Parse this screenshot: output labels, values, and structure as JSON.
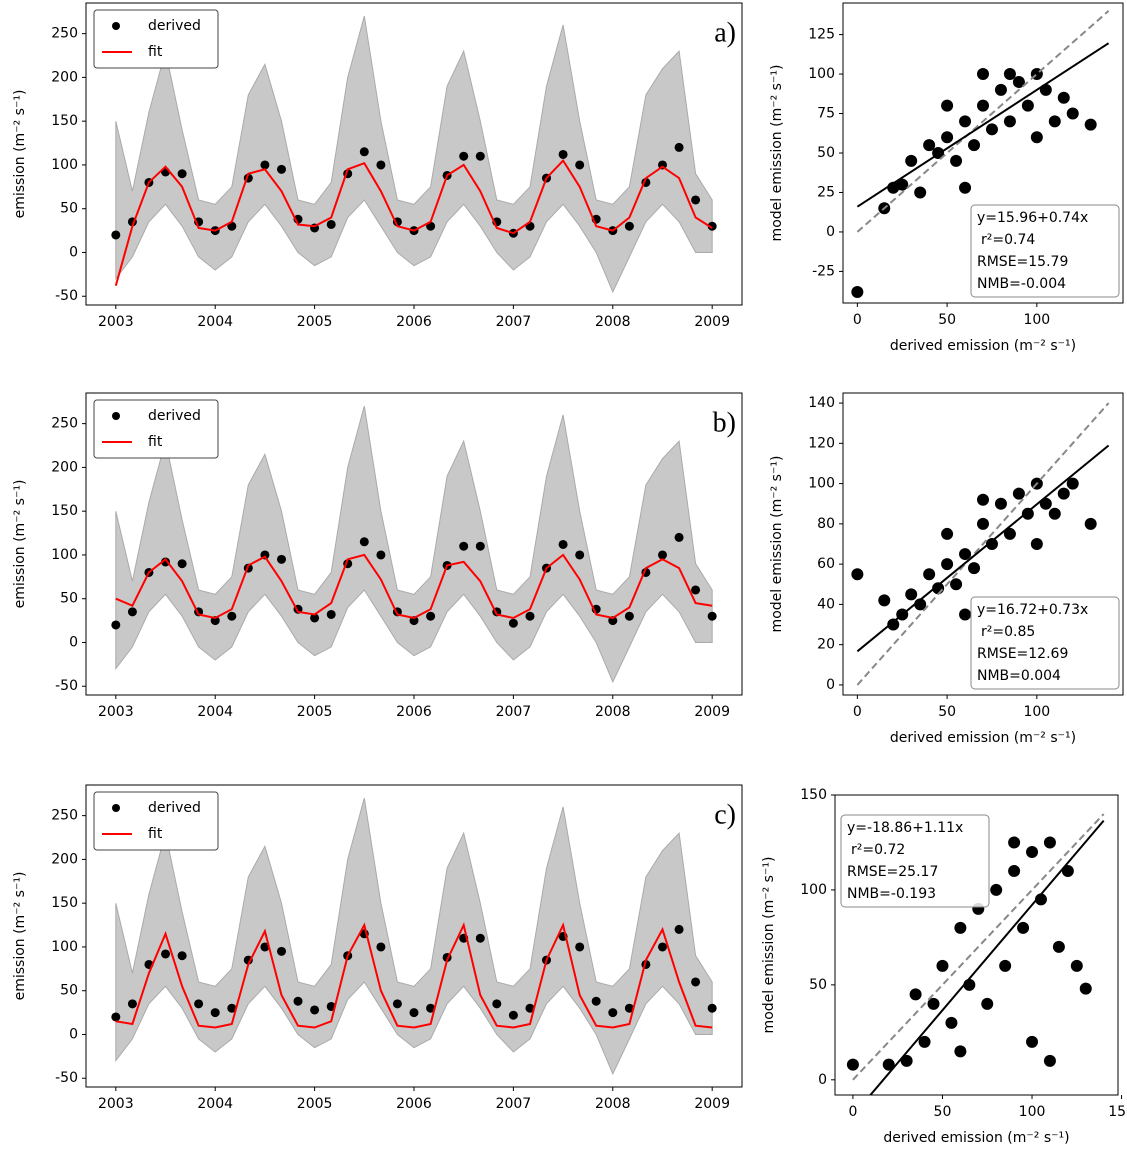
{
  "chart_data": [
    {
      "type": "line",
      "annotation": "a)",
      "y_label": "emission (m⁻² s⁻¹)",
      "legend": "upper left",
      "xlim": [
        2002.7,
        2009.3
      ],
      "xticks": [
        2003,
        2004,
        2005,
        2006,
        2007,
        2008,
        2009
      ],
      "ylim": [
        -60,
        285
      ],
      "yticks": [
        -50,
        0,
        50,
        100,
        150,
        200,
        250
      ],
      "x": [
        2003,
        2003.167,
        2003.333,
        2003.5,
        2003.667,
        2003.833,
        2004,
        2004.167,
        2004.333,
        2004.5,
        2004.667,
        2004.833,
        2005,
        2005.167,
        2005.333,
        2005.5,
        2005.667,
        2005.833,
        2006,
        2006.167,
        2006.333,
        2006.5,
        2006.667,
        2006.833,
        2007,
        2007.167,
        2007.333,
        2007.5,
        2007.667,
        2007.833,
        2008,
        2008.167,
        2008.333,
        2008.5,
        2008.667,
        2008.833,
        2009
      ],
      "band": {
        "color": "#c8c8c8",
        "upper": [
          150,
          70,
          160,
          230,
          140,
          60,
          55,
          75,
          180,
          215,
          150,
          60,
          55,
          80,
          200,
          270,
          150,
          60,
          55,
          75,
          190,
          230,
          150,
          60,
          55,
          75,
          190,
          260,
          150,
          60,
          55,
          75,
          180,
          210,
          230,
          90,
          60
        ],
        "lower": [
          -30,
          -5,
          35,
          55,
          30,
          -5,
          -20,
          -5,
          35,
          55,
          30,
          0,
          -15,
          -5,
          40,
          60,
          30,
          0,
          -15,
          -5,
          35,
          55,
          30,
          0,
          -20,
          -5,
          35,
          55,
          30,
          0,
          -45,
          -5,
          35,
          55,
          35,
          0,
          0
        ]
      },
      "series": [
        {
          "name": "derived",
          "color": "#000000",
          "marker": "dot",
          "values": [
            20,
            35,
            80,
            92,
            90,
            35,
            25,
            30,
            85,
            100,
            95,
            38,
            28,
            32,
            90,
            115,
            100,
            35,
            25,
            30,
            88,
            110,
            110,
            35,
            22,
            30,
            85,
            112,
            100,
            38,
            25,
            30,
            80,
            100,
            120,
            60,
            30
          ]
        },
        {
          "name": "fit",
          "color": "#ff0000",
          "marker": "line",
          "values": [
            -38,
            30,
            80,
            98,
            75,
            28,
            25,
            35,
            90,
            95,
            70,
            32,
            30,
            40,
            95,
            102,
            70,
            30,
            25,
            35,
            88,
            100,
            70,
            28,
            22,
            35,
            85,
            105,
            75,
            30,
            25,
            40,
            85,
            98,
            85,
            40,
            28
          ]
        }
      ]
    },
    {
      "type": "scatter",
      "x_label": "derived emission (m⁻² s⁻¹)",
      "y_label": "model emission (m⁻² s⁻¹)",
      "xlim": [
        -8,
        148
      ],
      "xticks": [
        0,
        50,
        100
      ],
      "ylim": [
        -45,
        145
      ],
      "yticks": [
        -25,
        0,
        25,
        50,
        75,
        100,
        125
      ],
      "color": "#000000",
      "x": [
        0,
        15,
        20,
        25,
        30,
        35,
        40,
        45,
        50,
        55,
        60,
        65,
        70,
        75,
        80,
        85,
        90,
        95,
        100,
        105,
        110,
        115,
        120,
        130,
        60,
        70,
        100,
        50,
        85
      ],
      "values": [
        -38,
        15,
        28,
        30,
        45,
        25,
        55,
        50,
        60,
        45,
        70,
        55,
        80,
        65,
        90,
        70,
        95,
        80,
        100,
        90,
        70,
        85,
        75,
        68,
        28,
        100,
        60,
        80,
        100
      ],
      "fit_line": {
        "x": [
          0,
          140
        ],
        "y": [
          15.96,
          119.56
        ]
      },
      "one_to_one": {
        "x": [
          0,
          140
        ],
        "y": [
          0,
          140
        ]
      },
      "stats": [
        "y=15.96+0.74x",
        "r²=0.74",
        "RMSE=15.79",
        "NMB=-0.004"
      ],
      "stats_corner": "lower right"
    },
    {
      "type": "line",
      "annotation": "b)",
      "y_label": "emission (m⁻² s⁻¹)",
      "legend": "upper left",
      "xlim": [
        2002.7,
        2009.3
      ],
      "xticks": [
        2003,
        2004,
        2005,
        2006,
        2007,
        2008,
        2009
      ],
      "ylim": [
        -60,
        285
      ],
      "yticks": [
        -50,
        0,
        50,
        100,
        150,
        200,
        250
      ],
      "x": [
        2003,
        2003.167,
        2003.333,
        2003.5,
        2003.667,
        2003.833,
        2004,
        2004.167,
        2004.333,
        2004.5,
        2004.667,
        2004.833,
        2005,
        2005.167,
        2005.333,
        2005.5,
        2005.667,
        2005.833,
        2006,
        2006.167,
        2006.333,
        2006.5,
        2006.667,
        2006.833,
        2007,
        2007.167,
        2007.333,
        2007.5,
        2007.667,
        2007.833,
        2008,
        2008.167,
        2008.333,
        2008.5,
        2008.667,
        2008.833,
        2009
      ],
      "band": {
        "color": "#c8c8c8",
        "upper": [
          150,
          70,
          160,
          230,
          140,
          60,
          55,
          75,
          180,
          215,
          150,
          60,
          55,
          80,
          200,
          270,
          150,
          60,
          55,
          75,
          190,
          230,
          150,
          60,
          55,
          75,
          190,
          260,
          150,
          60,
          55,
          75,
          180,
          210,
          230,
          90,
          60
        ],
        "lower": [
          -30,
          -5,
          35,
          55,
          30,
          -5,
          -20,
          -5,
          35,
          55,
          30,
          0,
          -15,
          -5,
          40,
          60,
          30,
          0,
          -15,
          -5,
          35,
          55,
          30,
          0,
          -20,
          -5,
          35,
          55,
          30,
          0,
          -45,
          -5,
          35,
          55,
          35,
          0,
          0
        ]
      },
      "series": [
        {
          "name": "derived",
          "color": "#000000",
          "marker": "dot",
          "values": [
            20,
            35,
            80,
            92,
            90,
            35,
            25,
            30,
            85,
            100,
            95,
            38,
            28,
            32,
            90,
            115,
            100,
            35,
            25,
            30,
            88,
            110,
            110,
            35,
            22,
            30,
            85,
            112,
            100,
            38,
            25,
            30,
            80,
            100,
            120,
            60,
            30
          ]
        },
        {
          "name": "fit",
          "color": "#ff0000",
          "marker": "line",
          "values": [
            50,
            42,
            80,
            95,
            70,
            32,
            28,
            38,
            88,
            98,
            70,
            35,
            32,
            45,
            95,
            100,
            72,
            32,
            28,
            38,
            88,
            92,
            70,
            32,
            28,
            38,
            85,
            100,
            72,
            32,
            28,
            40,
            85,
            95,
            85,
            45,
            42
          ]
        }
      ]
    },
    {
      "type": "scatter",
      "x_label": "derived emission (m⁻² s⁻¹)",
      "y_label": "model emission (m⁻² s⁻¹)",
      "xlim": [
        -8,
        148
      ],
      "xticks": [
        0,
        50,
        100
      ],
      "ylim": [
        -5,
        145
      ],
      "yticks": [
        0,
        20,
        40,
        60,
        80,
        100,
        120,
        140
      ],
      "color": "#000000",
      "x": [
        0,
        15,
        20,
        25,
        30,
        35,
        40,
        45,
        50,
        55,
        60,
        65,
        70,
        75,
        80,
        85,
        90,
        95,
        100,
        105,
        110,
        115,
        120,
        130,
        60,
        70,
        100,
        50
      ],
      "values": [
        55,
        42,
        30,
        35,
        45,
        40,
        55,
        48,
        60,
        50,
        65,
        58,
        80,
        70,
        90,
        75,
        95,
        85,
        100,
        90,
        85,
        95,
        100,
        80,
        35,
        92,
        70,
        75
      ],
      "fit_line": {
        "x": [
          0,
          140
        ],
        "y": [
          16.72,
          118.92
        ]
      },
      "one_to_one": {
        "x": [
          0,
          140
        ],
        "y": [
          0,
          140
        ]
      },
      "stats": [
        "y=16.72+0.73x",
        "r²=0.85",
        "RMSE=12.69",
        "NMB=0.004"
      ],
      "stats_corner": "lower right"
    },
    {
      "type": "line",
      "annotation": "c)",
      "y_label": "emission (m⁻² s⁻¹)",
      "legend": "upper left",
      "xlim": [
        2002.7,
        2009.3
      ],
      "xticks": [
        2003,
        2004,
        2005,
        2006,
        2007,
        2008,
        2009
      ],
      "ylim": [
        -60,
        285
      ],
      "yticks": [
        -50,
        0,
        50,
        100,
        150,
        200,
        250
      ],
      "x": [
        2003,
        2003.167,
        2003.333,
        2003.5,
        2003.667,
        2003.833,
        2004,
        2004.167,
        2004.333,
        2004.5,
        2004.667,
        2004.833,
        2005,
        2005.167,
        2005.333,
        2005.5,
        2005.667,
        2005.833,
        2006,
        2006.167,
        2006.333,
        2006.5,
        2006.667,
        2006.833,
        2007,
        2007.167,
        2007.333,
        2007.5,
        2007.667,
        2007.833,
        2008,
        2008.167,
        2008.333,
        2008.5,
        2008.667,
        2008.833,
        2009
      ],
      "band": {
        "color": "#c8c8c8",
        "upper": [
          150,
          70,
          160,
          230,
          140,
          60,
          55,
          75,
          180,
          215,
          150,
          60,
          55,
          80,
          200,
          270,
          150,
          60,
          55,
          75,
          190,
          230,
          150,
          60,
          55,
          75,
          190,
          260,
          150,
          60,
          55,
          75,
          180,
          210,
          230,
          90,
          60
        ],
        "lower": [
          -30,
          -5,
          35,
          55,
          30,
          -5,
          -20,
          -5,
          35,
          55,
          30,
          0,
          -15,
          -5,
          40,
          60,
          30,
          0,
          -15,
          -5,
          35,
          55,
          30,
          0,
          -20,
          -5,
          35,
          55,
          30,
          0,
          -45,
          -5,
          35,
          55,
          35,
          0,
          0
        ]
      },
      "series": [
        {
          "name": "derived",
          "color": "#000000",
          "marker": "dot",
          "values": [
            20,
            35,
            80,
            92,
            90,
            35,
            25,
            30,
            85,
            100,
            95,
            38,
            28,
            32,
            90,
            115,
            100,
            35,
            25,
            30,
            88,
            110,
            110,
            35,
            22,
            30,
            85,
            112,
            100,
            38,
            25,
            30,
            80,
            100,
            120,
            60,
            30
          ]
        },
        {
          "name": "fit",
          "color": "#ff0000",
          "marker": "line",
          "values": [
            15,
            12,
            70,
            115,
            55,
            10,
            8,
            12,
            80,
            118,
            45,
            10,
            8,
            15,
            90,
            125,
            50,
            10,
            8,
            12,
            85,
            125,
            45,
            10,
            8,
            12,
            85,
            125,
            45,
            10,
            8,
            12,
            85,
            120,
            60,
            10,
            8
          ]
        }
      ]
    },
    {
      "type": "scatter",
      "x_label": "derived emission (m⁻² s⁻¹)",
      "y_label": "model emission (m⁻² s⁻¹)",
      "xlim": [
        -10,
        148
      ],
      "xticks": [
        0,
        50,
        100,
        150
      ],
      "ylim": [
        -8,
        150
      ],
      "yticks": [
        0,
        50,
        100,
        150
      ],
      "color": "#000000",
      "x": [
        0,
        20,
        30,
        40,
        45,
        50,
        55,
        60,
        65,
        70,
        75,
        80,
        85,
        90,
        95,
        100,
        105,
        110,
        115,
        120,
        125,
        130,
        100,
        110,
        35,
        60,
        90
      ],
      "values": [
        8,
        8,
        10,
        20,
        40,
        60,
        30,
        80,
        50,
        90,
        40,
        100,
        60,
        110,
        80,
        120,
        95,
        125,
        70,
        110,
        60,
        48,
        20,
        10,
        45,
        15,
        125
      ],
      "fit_line": {
        "x": [
          0,
          140
        ],
        "y": [
          -18.86,
          136.54
        ]
      },
      "one_to_one": {
        "x": [
          0,
          140
        ],
        "y": [
          0,
          140
        ]
      },
      "stats": [
        "y=-18.86+1.11x",
        "r²=0.72",
        "RMSE=25.17",
        "NMB=-0.193"
      ],
      "stats_corner": "upper left"
    }
  ]
}
